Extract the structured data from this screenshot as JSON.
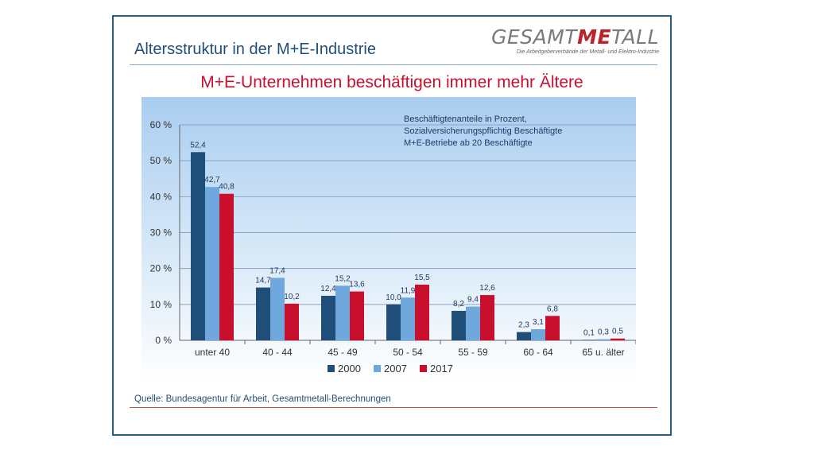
{
  "header": {
    "title": "Altersstruktur in der M+E-Industrie",
    "logo_prefix": "GESAMT",
    "logo_accent": "ME",
    "logo_suffix": "TALL",
    "logo_tagline": "Die Arbeitgeberverbände der Metall- und Elektro-Industrie"
  },
  "headline": "M+E-Unternehmen beschäftigen immer mehr Ältere",
  "note": [
    "Beschäftigtenanteile in Prozent,",
    "Sozialversicherungspflichtig Beschäftigte",
    "M+E-Betriebe ab 20 Beschäftigte"
  ],
  "source": "Quelle: Bundesagentur für Arbeit, Gesamtmetall-Berechnungen",
  "colors": {
    "s2000": "#1f4e79",
    "s2007": "#6fa8dc",
    "s2017": "#c8102e",
    "frame": "#1f5f8b"
  },
  "chart_data": {
    "type": "bar",
    "title": "M+E-Unternehmen beschäftigen immer mehr Ältere",
    "xlabel": "",
    "ylabel": "",
    "ylim": [
      0,
      60
    ],
    "yticks": [
      0,
      10,
      20,
      30,
      40,
      50,
      60
    ],
    "ytick_labels": [
      "0 %",
      "10 %",
      "20 %",
      "30 %",
      "40 %",
      "50 %",
      "60 %"
    ],
    "grid": true,
    "legend_position": "bottom-center",
    "categories": [
      "unter 40",
      "40 - 44",
      "45 - 49",
      "50 - 54",
      "55 - 59",
      "60 - 64",
      "65 u. älter"
    ],
    "series": [
      {
        "name": "2000",
        "values": [
          52.4,
          14.7,
          12.4,
          10.0,
          8.2,
          2.3,
          0.1
        ],
        "labels": [
          "52,4",
          "14,7",
          "12,4",
          "10,0",
          "8,2",
          "2,3",
          "0,1"
        ]
      },
      {
        "name": "2007",
        "values": [
          42.7,
          17.4,
          15.2,
          11.9,
          9.4,
          3.1,
          0.3
        ],
        "labels": [
          "42,7",
          "17,4",
          "15,2",
          "11,9",
          "9,4",
          "3,1",
          "0,3"
        ]
      },
      {
        "name": "2017",
        "values": [
          40.8,
          10.2,
          13.6,
          15.5,
          12.6,
          6.8,
          0.5
        ],
        "labels": [
          "40,8",
          "10,2",
          "13,6",
          "15,5",
          "12,6",
          "6,8",
          "0,5"
        ]
      }
    ]
  }
}
